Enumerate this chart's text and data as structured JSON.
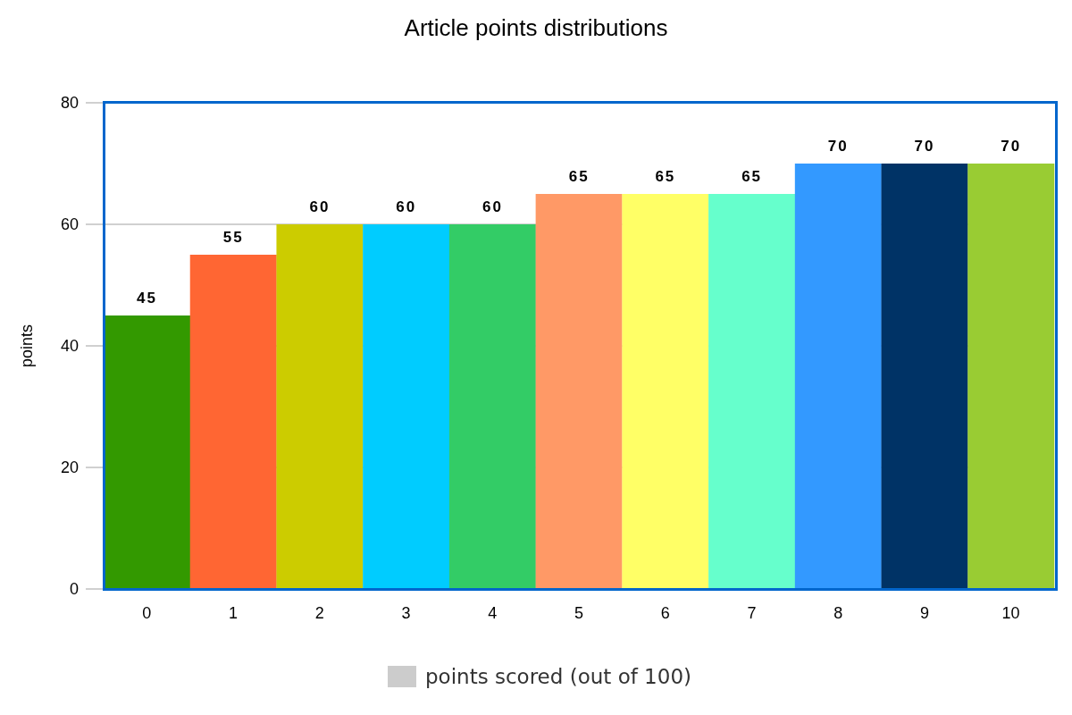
{
  "chart_data": {
    "type": "bar",
    "title": "Article points distributions",
    "ylabel": "points",
    "categories": [
      "0",
      "1",
      "2",
      "3",
      "4",
      "5",
      "6",
      "7",
      "8",
      "9",
      "10"
    ],
    "series": [
      {
        "name": "points scored (out of 100)",
        "color": "#cccccc",
        "colors": [
          "#339900",
          "#ff6633",
          "#cccc00",
          "#00ccff",
          "#33cc66",
          "#ff9966",
          "#ffff66",
          "#66ffcc",
          "#3399ff",
          "#003366",
          "#99cc33"
        ],
        "values": [
          45,
          55,
          60,
          60,
          60,
          65,
          65,
          65,
          70,
          70,
          70
        ]
      }
    ],
    "ylim": [
      0,
      80
    ],
    "yticks": [
      0,
      20,
      40,
      60,
      80
    ],
    "grid": "y",
    "legend": "bottom",
    "data_labels": true
  }
}
